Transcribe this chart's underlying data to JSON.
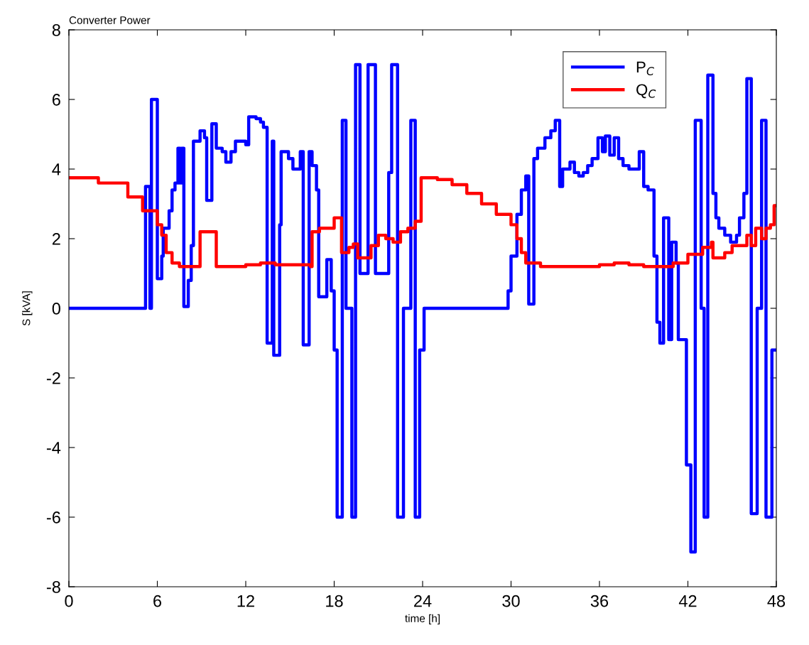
{
  "chart_data": {
    "type": "step",
    "title": "Converter Power",
    "xlabel": "time [h]",
    "ylabel": "S [kVA]",
    "xlim": [
      0,
      48
    ],
    "xticks": [
      0,
      6,
      12,
      18,
      24,
      30,
      36,
      42,
      48
    ],
    "ylim": [
      -8,
      8
    ],
    "yticks": [
      -8,
      -6,
      -4,
      -2,
      0,
      2,
      4,
      6,
      8
    ],
    "grid": false,
    "legend": "top right",
    "marker": "none",
    "line_style": "solid",
    "series": [
      {
        "name": "P$_{C}$",
        "color": "#0000ff",
        "x": [
          0,
          5.2,
          5.5,
          5.6,
          6.0,
          6.3,
          6.4,
          6.8,
          7.0,
          7.2,
          7.4,
          7.55,
          7.65,
          7.8,
          8.1,
          8.3,
          8.45,
          8.9,
          9.2,
          9.35,
          9.7,
          10.0,
          10.4,
          10.65,
          11.0,
          11.3,
          12.0,
          12.2,
          12.7,
          13.0,
          13.2,
          13.45,
          13.8,
          13.9,
          14.3,
          14.4,
          14.9,
          15.2,
          15.7,
          15.9,
          16.3,
          16.5,
          16.8,
          16.95,
          17.5,
          17.8,
          18.0,
          18.2,
          18.55,
          18.8,
          19.2,
          19.45,
          19.75,
          20.3,
          20.8,
          21.7,
          21.9,
          22.3,
          22.7,
          23.2,
          23.5,
          23.8,
          24.1,
          29.8,
          30.0,
          30.4,
          30.7,
          31.0,
          31.2,
          31.55,
          31.8,
          32.3,
          32.7,
          33.0,
          33.3,
          33.5,
          34.0,
          34.3,
          34.6,
          34.9,
          35.2,
          35.5,
          35.9,
          36.2,
          36.4,
          36.7,
          37.0,
          37.3,
          37.6,
          38.0,
          38.7,
          39.0,
          39.3,
          39.7,
          39.9,
          40.1,
          40.35,
          40.7,
          40.9,
          41.2,
          41.35,
          41.9,
          42.2,
          42.5,
          42.9,
          43.1,
          43.35,
          43.7,
          43.9,
          44.1,
          44.5,
          44.9,
          45.3,
          45.5,
          45.8,
          46.0,
          46.3,
          46.7,
          47.0,
          47.3,
          47.7,
          48
        ],
        "values": [
          0,
          3.5,
          0,
          6.0,
          0.85,
          1.5,
          2.3,
          2.8,
          3.4,
          3.6,
          4.6,
          3.6,
          4.6,
          0.05,
          0.8,
          1.8,
          4.8,
          5.1,
          4.9,
          3.1,
          5.3,
          4.6,
          4.5,
          4.2,
          4.5,
          4.8,
          4.7,
          5.5,
          5.45,
          5.35,
          5.2,
          -1.0,
          4.8,
          -1.35,
          2.4,
          4.5,
          4.3,
          4.0,
          4.5,
          -1.05,
          4.5,
          4.1,
          3.4,
          0.33,
          1.4,
          0.5,
          -1.2,
          -6.0,
          5.4,
          0,
          -6.0,
          7.0,
          1.0,
          7.0,
          1.0,
          3.9,
          7.0,
          -6.0,
          0,
          5.4,
          -6.0,
          -1.2,
          0,
          0.5,
          1.5,
          2.7,
          3.4,
          3.8,
          0.12,
          4.3,
          4.6,
          4.9,
          5.1,
          5.4,
          3.5,
          4.0,
          4.2,
          3.9,
          3.8,
          3.9,
          4.1,
          4.3,
          4.9,
          4.5,
          4.95,
          4.4,
          4.9,
          4.3,
          4.1,
          4.0,
          4.5,
          3.5,
          3.4,
          1.5,
          -0.4,
          -1.0,
          2.6,
          -0.9,
          1.9,
          1.3,
          -0.9,
          -4.5,
          -7.0,
          5.4,
          0,
          -6.0,
          6.7,
          3.3,
          2.6,
          2.3,
          2.1,
          1.9,
          2.1,
          2.6,
          3.3,
          6.6,
          -5.9,
          0,
          5.4,
          -6.0,
          -1.2,
          -1.2
        ]
      },
      {
        "name": "Q$_{C}$",
        "color": "#ff0000",
        "x": [
          0,
          2,
          4,
          5,
          6,
          6.3,
          6.6,
          7,
          7.5,
          8.9,
          10.0,
          12,
          13,
          14,
          16.4,
          16.5,
          17,
          18,
          18.5,
          19,
          19.3,
          19.6,
          20.5,
          21,
          21.5,
          22,
          22.5,
          23,
          23.5,
          23.9,
          25,
          26,
          27,
          28,
          29,
          30,
          30.4,
          30.7,
          31,
          32,
          34,
          36,
          37,
          38,
          39,
          40,
          41,
          42,
          43,
          43.6,
          43.7,
          44.5,
          45,
          46,
          46.3,
          46.6,
          47,
          47.3,
          47.6,
          47.85,
          48
        ],
        "values": [
          3.75,
          3.6,
          3.2,
          2.8,
          2.4,
          2.1,
          1.6,
          1.3,
          1.2,
          2.2,
          1.2,
          1.25,
          1.3,
          1.25,
          1.2,
          2.2,
          2.3,
          2.6,
          1.6,
          1.75,
          1.85,
          1.45,
          1.8,
          2.1,
          2.0,
          1.9,
          2.2,
          2.3,
          2.5,
          3.75,
          3.7,
          3.55,
          3.3,
          3.0,
          2.7,
          2.4,
          2.0,
          1.6,
          1.3,
          1.2,
          1.2,
          1.25,
          1.3,
          1.25,
          1.2,
          1.2,
          1.3,
          1.55,
          1.75,
          1.9,
          1.45,
          1.6,
          1.8,
          2.1,
          1.8,
          2.3,
          2.0,
          2.3,
          2.4,
          2.95,
          2.95
        ]
      }
    ]
  }
}
